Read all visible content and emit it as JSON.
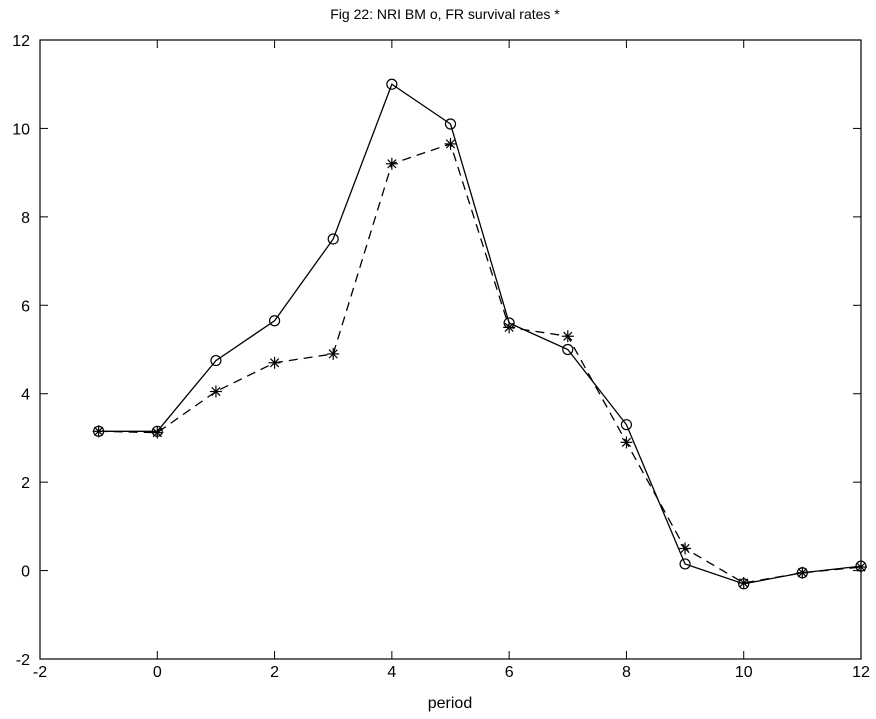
{
  "chart_data": {
    "type": "line",
    "title": "Fig 22: NRI BM o, FR survival rates *",
    "xlabel": "period",
    "ylabel": "",
    "xlim": [
      -2,
      12
    ],
    "ylim": [
      -2,
      12
    ],
    "xticks": [
      -2,
      0,
      2,
      4,
      6,
      8,
      10,
      12
    ],
    "yticks": [
      -2,
      0,
      2,
      4,
      6,
      8,
      10,
      12
    ],
    "grid": false,
    "x": [
      -1,
      0,
      1,
      2,
      3,
      4,
      5,
      6,
      7,
      8,
      9,
      10,
      11,
      12
    ],
    "series": [
      {
        "style": "solid",
        "marker": "circle",
        "color": "#000000",
        "values": [
          3.15,
          3.15,
          4.75,
          5.65,
          7.5,
          11.0,
          10.1,
          5.6,
          5.0,
          3.3,
          0.15,
          -0.3,
          -0.05,
          0.1
        ]
      },
      {
        "style": "dashed",
        "marker": "asterisk",
        "color": "#000000",
        "values": [
          3.15,
          3.12,
          4.05,
          4.7,
          4.9,
          9.2,
          9.65,
          5.5,
          5.3,
          2.9,
          0.5,
          -0.28,
          -0.05,
          0.08
        ]
      }
    ]
  }
}
